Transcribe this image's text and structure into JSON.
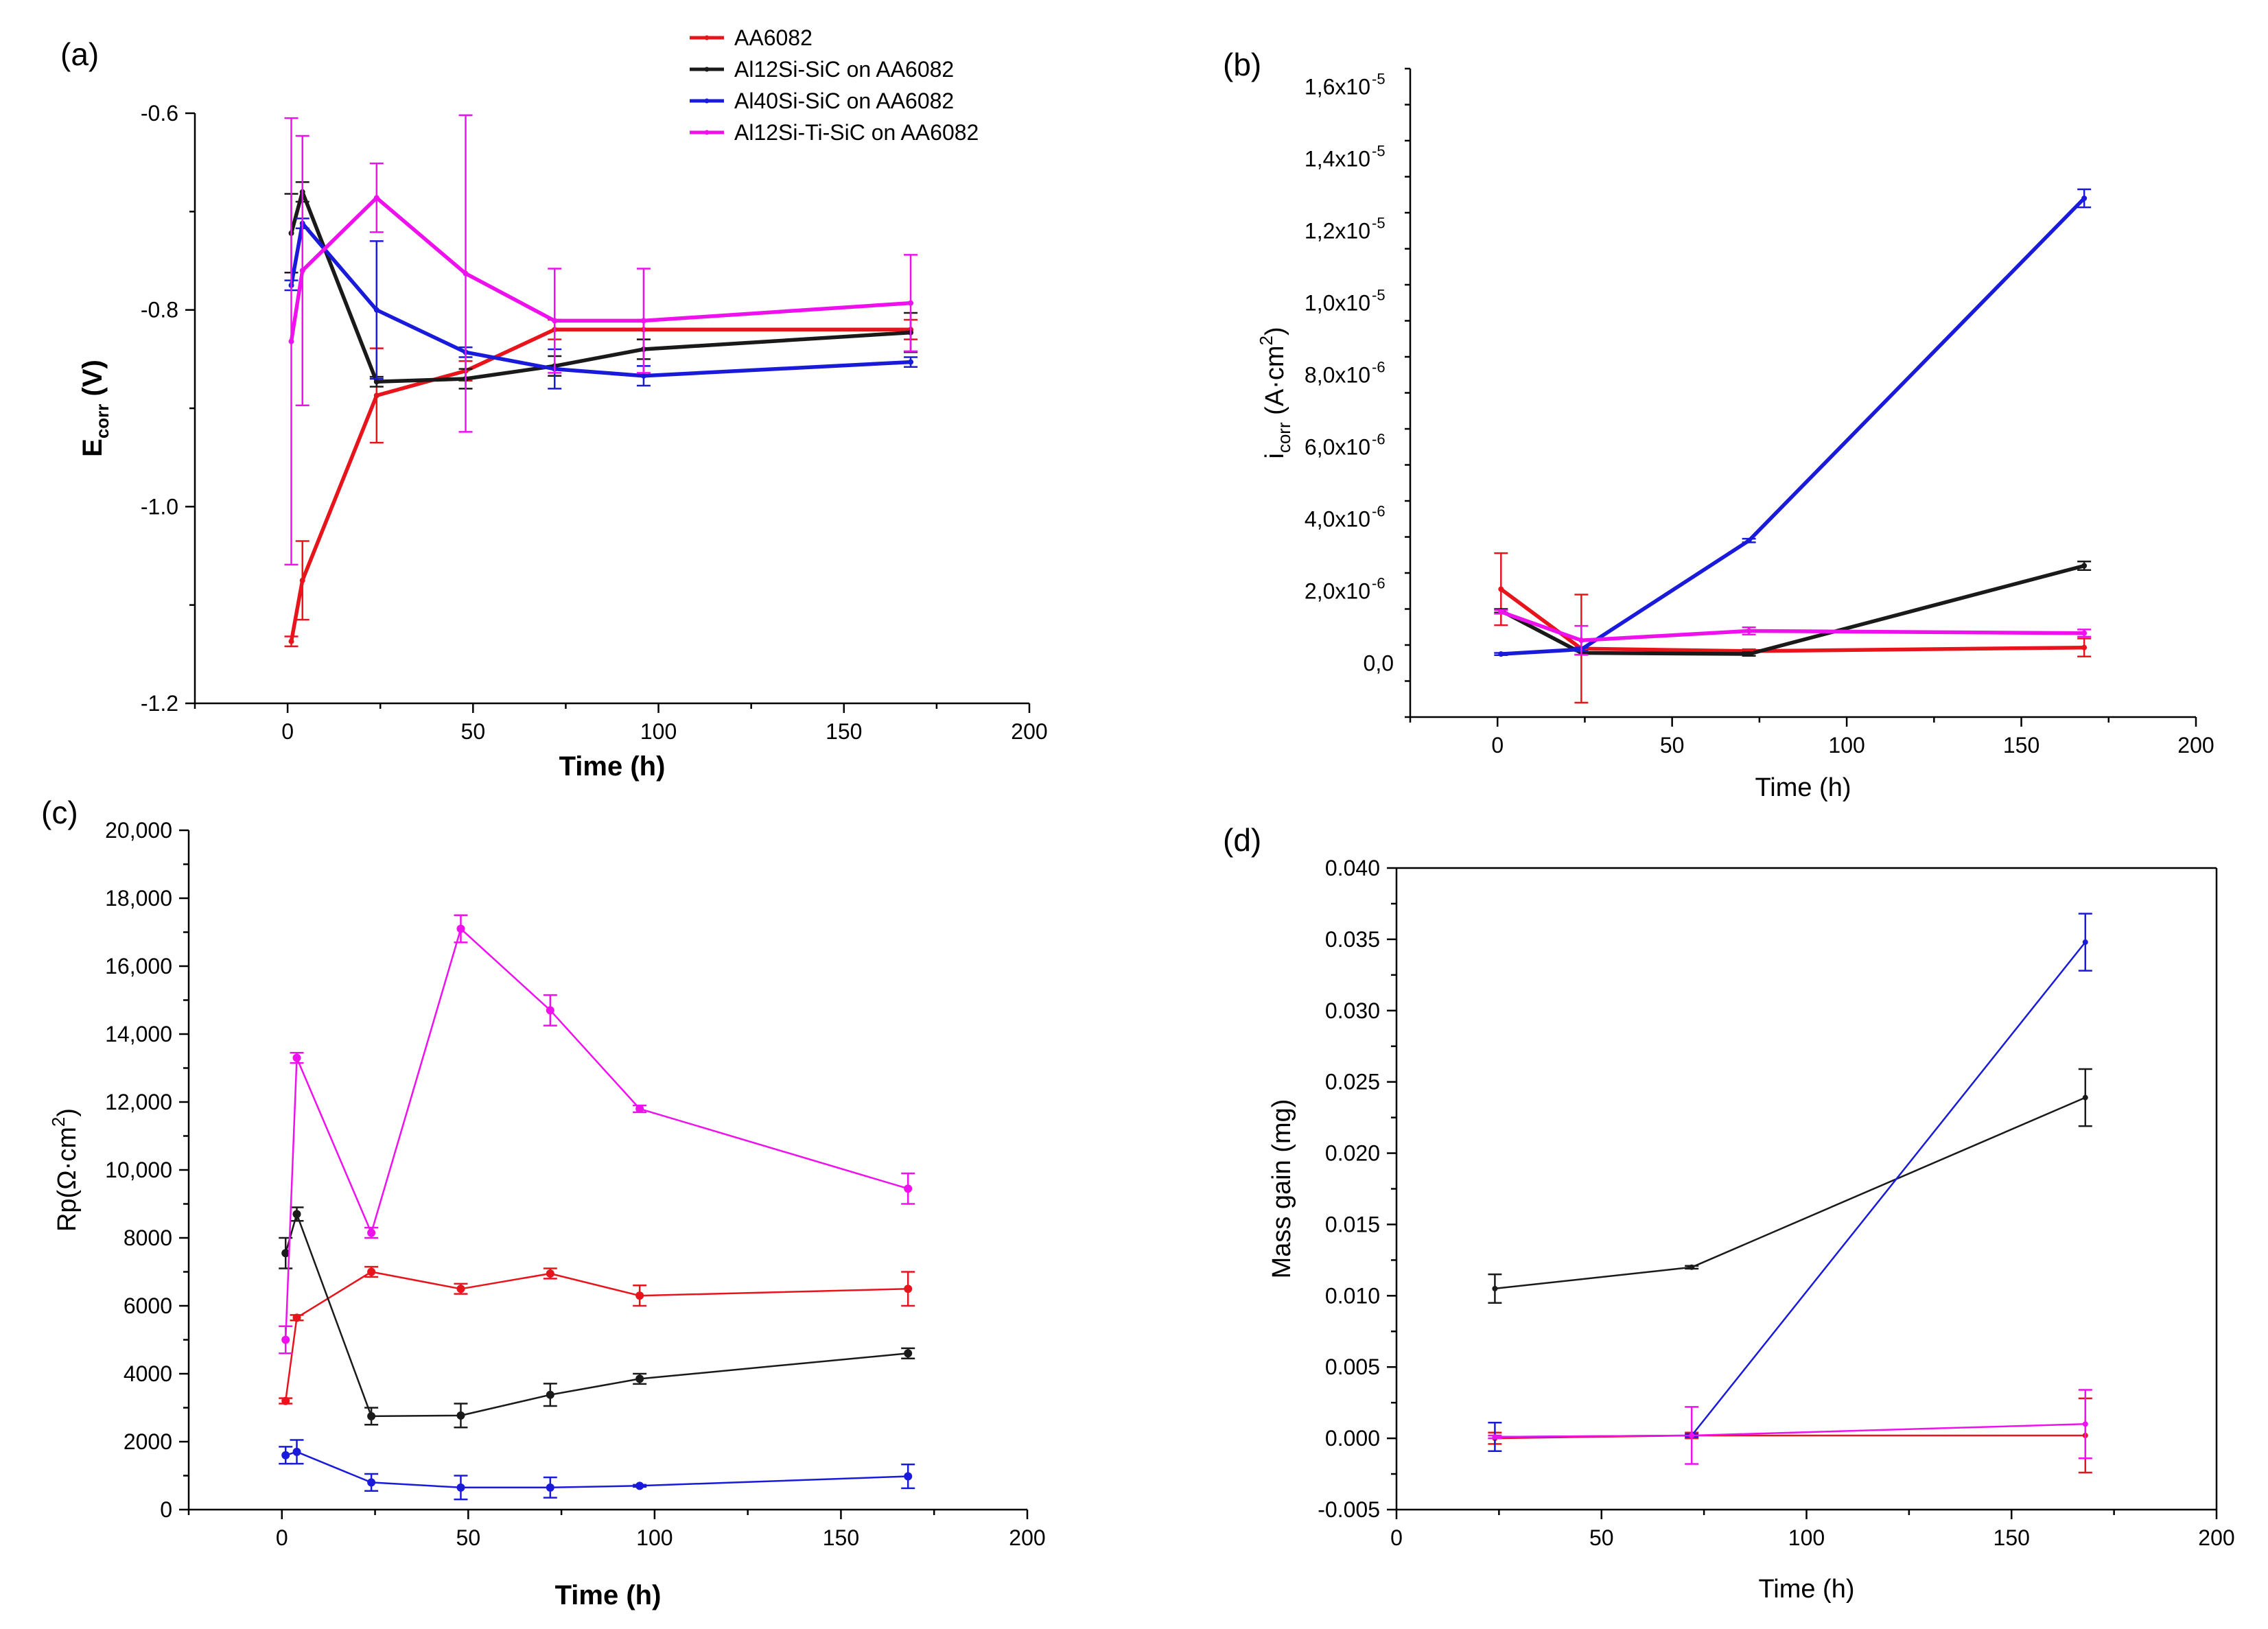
{
  "colors": {
    "AA6082": "#e8141c",
    "Al12Si-SiC on AA6082": "#1a1a1a",
    "Al40Si-SiC on AA6082": "#1a1adb",
    "Al12Si-Ti-SiC on AA6082": "#ee11ee"
  },
  "legend": [
    "AA6082",
    "Al12Si-SiC on AA6082",
    "Al40Si-SiC on AA6082",
    "Al12Si-Ti-SiC on AA6082"
  ],
  "chart_data": [
    {
      "panel": "(a)",
      "type": "line",
      "xlabel": "Time (h)",
      "ylabel": "E",
      "ylabel_sub": "corr",
      "ylabel_tail": " (V)",
      "xlim": [
        -25,
        200
      ],
      "ylim": [
        -1.2,
        -0.6
      ],
      "xticks": [
        0,
        50,
        100,
        150,
        200
      ],
      "xtick_labels": [
        "0",
        "50",
        "100",
        "150",
        "200"
      ],
      "yticks": [
        -1.2,
        -1.0,
        -0.8,
        -0.6
      ],
      "ytick_labels": [
        "-1.2",
        "-1.0",
        "-0.8",
        "-0.6"
      ],
      "series": [
        {
          "name": "AA6082",
          "x": [
            1,
            4,
            24,
            48,
            72,
            96,
            168
          ],
          "values": [
            -1.137,
            -1.075,
            -0.887,
            -0.862,
            -0.82,
            -0.82,
            -0.82
          ],
          "err": [
            0.005,
            0.04,
            0.048,
            0.01,
            0.01,
            0.01,
            0.01
          ]
        },
        {
          "name": "Al12Si-SiC on AA6082",
          "x": [
            1,
            4,
            24,
            48,
            72,
            96,
            168
          ],
          "values": [
            -0.722,
            -0.68,
            -0.873,
            -0.87,
            -0.857,
            -0.84,
            -0.823
          ],
          "err": [
            0.04,
            0.01,
            0.005,
            0.01,
            0.01,
            0.01,
            0.02
          ]
        },
        {
          "name": "Al40Si-SiC on AA6082",
          "x": [
            1,
            4,
            24,
            48,
            72,
            96,
            168
          ],
          "values": [
            -0.775,
            -0.712,
            -0.8,
            -0.843,
            -0.86,
            -0.867,
            -0.853
          ],
          "err": [
            0.005,
            0.005,
            0.07,
            0.005,
            0.02,
            0.01,
            0.005
          ]
        },
        {
          "name": "Al12Si-Ti-SiC on AA6082",
          "x": [
            1,
            4,
            24,
            48,
            72,
            96,
            168
          ],
          "values": [
            -0.832,
            -0.76,
            -0.686,
            -0.763,
            -0.811,
            -0.811,
            -0.793
          ],
          "err": [
            0.227,
            0.137,
            0.035,
            0.161,
            0.053,
            0.053,
            0.049
          ]
        }
      ]
    },
    {
      "panel": "(b)",
      "type": "line",
      "xlabel": "Time (h)",
      "ylabel": "i",
      "ylabel_sub": "corr",
      "ylabel_tail": " (A·cm",
      "ylabel_sup": "2",
      "ylabel_end": ")",
      "xlim": [
        -25,
        200
      ],
      "ylim": [
        -1.5e-06,
        1.65e-05
      ],
      "xticks": [
        0,
        50,
        100,
        150,
        200
      ],
      "xtick_labels": [
        "0",
        "50",
        "100",
        "150",
        "200"
      ],
      "yticks": [
        0,
        2e-06,
        4e-06,
        6e-06,
        8e-06,
        1e-05,
        1.2e-05,
        1.4e-05,
        1.6e-05
      ],
      "ytick_labels": [
        "0,0",
        "2,0x10",
        "4,0x10",
        "6,0x10",
        "8,0x10",
        "1,0x10",
        "1,2x10",
        "1,4x10",
        "1,6x10"
      ],
      "ytick_exps": [
        "",
        "-6",
        "-6",
        "-6",
        "-6",
        "-5",
        "-5",
        "-5",
        "-5"
      ],
      "series": [
        {
          "name": "AA6082",
          "x": [
            1,
            24,
            72,
            168
          ],
          "values": [
            2.05e-06,
            4e-07,
            3.3e-07,
            4.3e-07
          ],
          "err": [
            1e-06,
            1.5e-06,
            5e-08,
            2.5e-07
          ]
        },
        {
          "name": "Al12Si-SiC on AA6082",
          "x": [
            1,
            24,
            72,
            168
          ],
          "values": [
            1.45e-06,
            2.8e-07,
            2.5e-07,
            2.7e-06
          ],
          "err": [
            5e-08,
            5e-08,
            5e-08,
            1.2e-07
          ]
        },
        {
          "name": "Al40Si-SiC on AA6082",
          "x": [
            1,
            24,
            72,
            168
          ],
          "values": [
            2.5e-07,
            3.8e-07,
            3.4e-06,
            1.29e-05
          ],
          "err": [
            3e-08,
            5e-08,
            5e-08,
            2.5e-07
          ]
        },
        {
          "name": "Al12Si-Ti-SiC on AA6082",
          "x": [
            1,
            24,
            72,
            168
          ],
          "values": [
            1.42e-06,
            6.3e-07,
            8.9e-07,
            8.3e-07
          ],
          "err": [
            5e-08,
            4e-07,
            1e-07,
            1e-07
          ]
        }
      ]
    },
    {
      "panel": "(c)",
      "type": "line",
      "xlabel": "Time (h)",
      "ylabel": "Rp(Ω·cm",
      "ylabel_sup": "2",
      "ylabel_end": ")",
      "xlim": [
        -25,
        200
      ],
      "ylim": [
        0,
        20000
      ],
      "xticks": [
        0,
        50,
        100,
        150,
        200
      ],
      "xtick_labels": [
        "0",
        "50",
        "100",
        "150",
        "200"
      ],
      "yticks": [
        0,
        2000,
        4000,
        6000,
        8000,
        10000,
        12000,
        14000,
        16000,
        18000,
        20000
      ],
      "ytick_labels": [
        "0",
        "2000",
        "4000",
        "6000",
        "8000",
        "10,000",
        "12,000",
        "14,000",
        "16,000",
        "18,000",
        "20,000"
      ],
      "series": [
        {
          "name": "AA6082",
          "x": [
            1,
            4,
            24,
            48,
            72,
            96,
            168
          ],
          "values": [
            3200,
            5650,
            7000,
            6500,
            6950,
            6300,
            6500
          ],
          "err": [
            80,
            80,
            150,
            150,
            150,
            300,
            500
          ]
        },
        {
          "name": "Al12Si-SiC on AA6082",
          "x": [
            1,
            4,
            24,
            48,
            72,
            96,
            168
          ],
          "values": [
            7550,
            8700,
            2750,
            2770,
            3380,
            3850,
            4600
          ],
          "err": [
            450,
            200,
            250,
            350,
            330,
            150,
            150
          ]
        },
        {
          "name": "Al40Si-SiC on AA6082",
          "x": [
            1,
            4,
            24,
            48,
            72,
            96,
            168
          ],
          "values": [
            1600,
            1700,
            800,
            650,
            650,
            700,
            980
          ],
          "err": [
            250,
            350,
            250,
            350,
            300,
            30,
            350
          ]
        },
        {
          "name": "Al12Si-Ti-SiC on AA6082",
          "x": [
            1,
            4,
            24,
            48,
            72,
            96,
            168
          ],
          "values": [
            5000,
            13300,
            8150,
            17100,
            14700,
            11800,
            9450
          ],
          "err": [
            400,
            150,
            150,
            400,
            450,
            100,
            450
          ]
        }
      ]
    },
    {
      "panel": "(d)",
      "type": "line",
      "xlabel": "Time (h)",
      "ylabel": "Mass gain (mg)",
      "xlim": [
        0,
        200
      ],
      "ylim": [
        -0.005,
        0.04
      ],
      "xticks": [
        0,
        50,
        100,
        150,
        200
      ],
      "xtick_labels": [
        "0",
        "50",
        "100",
        "150",
        "200"
      ],
      "yticks": [
        -0.005,
        0.0,
        0.005,
        0.01,
        0.015,
        0.02,
        0.025,
        0.03,
        0.035,
        0.04
      ],
      "ytick_labels": [
        "-0.005",
        "0.000",
        "0.005",
        "0.010",
        "0.015",
        "0.020",
        "0.025",
        "0.030",
        "0.035",
        "0.040"
      ],
      "series": [
        {
          "name": "AA6082",
          "x": [
            24,
            72,
            168
          ],
          "values": [
            0.0,
            0.0002,
            0.0002
          ],
          "err": [
            0.0004,
            0.0002,
            0.0026
          ]
        },
        {
          "name": "Al12Si-SiC on AA6082",
          "x": [
            24,
            72,
            168
          ],
          "values": [
            0.0105,
            0.012,
            0.0239
          ],
          "err": [
            0.001,
            0.0001,
            0.002
          ]
        },
        {
          "name": "Al40Si-SiC on AA6082",
          "x": [
            24,
            72,
            168
          ],
          "values": [
            0.0001,
            0.0002,
            0.0348
          ],
          "err": [
            0.001,
            0.0001,
            0.002
          ]
        },
        {
          "name": "Al12Si-Ti-SiC on AA6082",
          "x": [
            24,
            72,
            168
          ],
          "values": [
            0.0001,
            0.0002,
            0.001
          ],
          "err": [
            0.0001,
            0.002,
            0.0024
          ]
        }
      ]
    }
  ]
}
